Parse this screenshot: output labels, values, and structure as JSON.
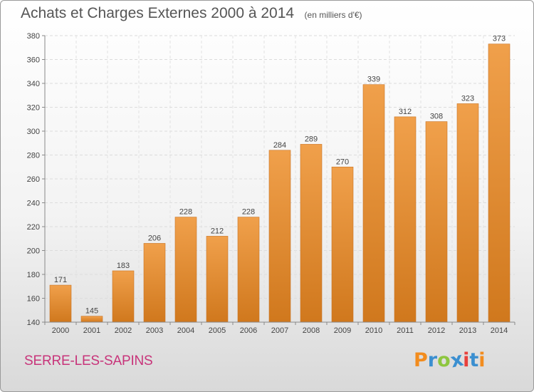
{
  "chart_data": {
    "type": "bar",
    "title": "Achats et Charges Externes 2000 à 2014",
    "unit_note": "(en milliers d'€)",
    "categories": [
      "2000",
      "2001",
      "2002",
      "2003",
      "2004",
      "2005",
      "2006",
      "2007",
      "2008",
      "2009",
      "2010",
      "2011",
      "2012",
      "2013",
      "2014"
    ],
    "values": [
      171,
      145,
      183,
      206,
      228,
      212,
      228,
      284,
      289,
      270,
      339,
      312,
      308,
      323,
      373
    ],
    "ylim": [
      140,
      380
    ],
    "yticks": [
      140,
      160,
      180,
      200,
      220,
      240,
      260,
      280,
      300,
      320,
      340,
      360,
      380
    ],
    "grid": true,
    "bar_color": "#f0a04b",
    "bar_color_dark": "#d0781d"
  },
  "footer": {
    "commune": "SERRE-LES-SAPINS",
    "commune_color": "#c8347a",
    "logo_text": "Proxiti",
    "logo_colors": [
      "#f28c1e",
      "#3b8fd0",
      "#8dc63f",
      "#3b8fd0",
      "#e8403c",
      "#3b8fd0",
      "#f28c1e"
    ]
  }
}
